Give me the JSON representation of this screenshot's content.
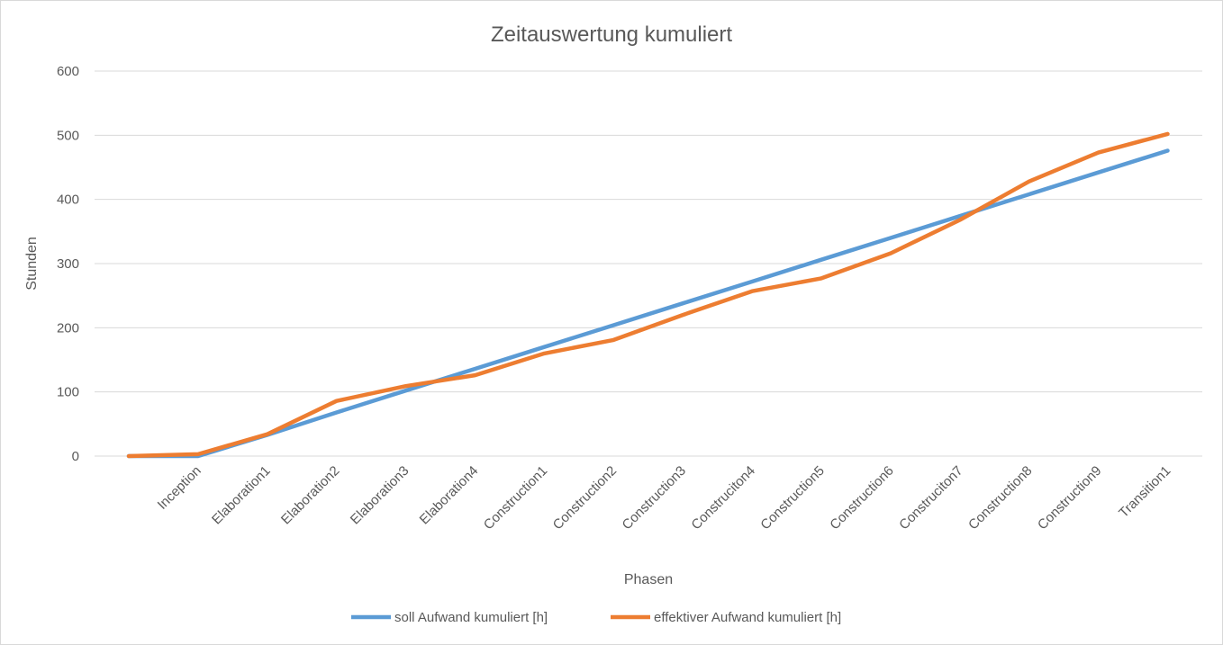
{
  "chart_data": {
    "type": "line",
    "title": "Zeitauswertung kumuliert",
    "xlabel": "Phasen",
    "ylabel": "Stunden",
    "ylim": [
      0,
      600
    ],
    "yticks": [
      0,
      100,
      200,
      300,
      400,
      500,
      600
    ],
    "grid": true,
    "legend_position": "bottom",
    "categories": [
      "",
      "Inception",
      "Elaboration1",
      "Elaboration2",
      "Elaboration3",
      "Elaboration4",
      "Construction1",
      "Construction2",
      "Construction3",
      "Construciton4",
      "Construction5",
      "Construction6",
      "Construciton7",
      "Construction8",
      "Construction9",
      "Transition1"
    ],
    "series": [
      {
        "name": "soll Aufwand kumuliert [h]",
        "color": "#5B9BD5",
        "values": [
          0,
          0,
          33,
          68,
          102,
          136,
          170,
          204,
          238,
          272,
          306,
          340,
          374,
          408,
          442,
          476
        ]
      },
      {
        "name": "effektiver Aufwand kumuliert [h]",
        "color": "#ED7D31",
        "values": [
          0,
          3,
          34,
          86,
          109,
          126,
          160,
          181,
          220,
          257,
          277,
          316,
          368,
          428,
          473,
          502
        ]
      }
    ]
  }
}
